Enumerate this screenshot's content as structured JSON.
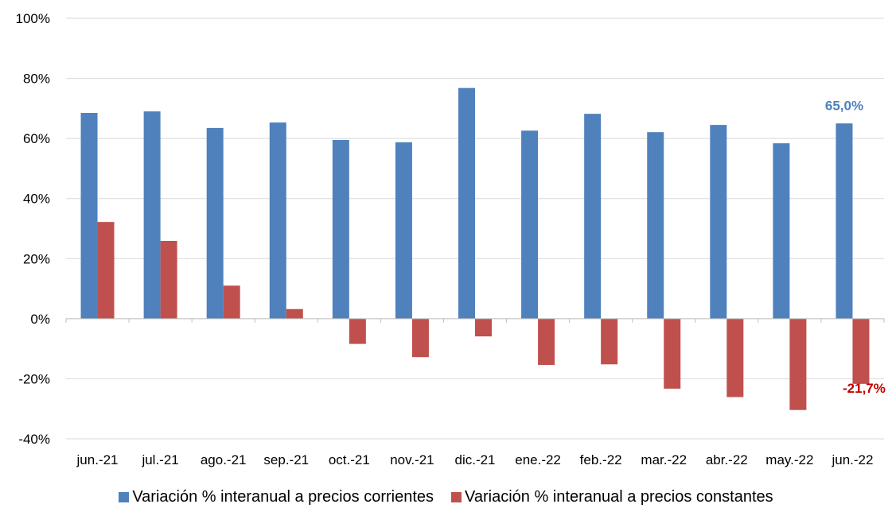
{
  "chart_data": {
    "type": "bar",
    "categories": [
      "jun.-21",
      "jul.-21",
      "ago.-21",
      "sep.-21",
      "oct.-21",
      "nov.-21",
      "dic.-21",
      "ene.-22",
      "feb.-22",
      "mar.-22",
      "abr.-22",
      "may.-22",
      "jun.-22"
    ],
    "series": [
      {
        "name": "Variación % interanual a precios corrientes",
        "color": "#4f81bd",
        "values": [
          68.5,
          69,
          63.5,
          65.3,
          59.5,
          58.7,
          76.8,
          62.6,
          68.2,
          62.1,
          64.5,
          58.4,
          65.0
        ]
      },
      {
        "name": "Variación % interanual a precios constantes",
        "color": "#c0504d",
        "values": [
          32.2,
          25.9,
          11.0,
          3.2,
          -8.4,
          -12.8,
          -5.9,
          -15.4,
          -15.2,
          -23.3,
          -26.1,
          -30.4,
          -21.7
        ]
      }
    ],
    "ylim": [
      -40,
      100
    ],
    "yticks": [
      -40,
      -20,
      0,
      20,
      40,
      60,
      80,
      100
    ],
    "ytick_labels": [
      "-40%",
      "-20%",
      "0%",
      "20%",
      "40%",
      "60%",
      "80%",
      "100%"
    ],
    "grid": true,
    "legend_position": "bottom",
    "annotations": [
      {
        "text": "65,0%",
        "series": 0,
        "category": "jun.-22"
      },
      {
        "text": "-21,7%",
        "series": 1,
        "category": "jun.-22"
      }
    ]
  }
}
